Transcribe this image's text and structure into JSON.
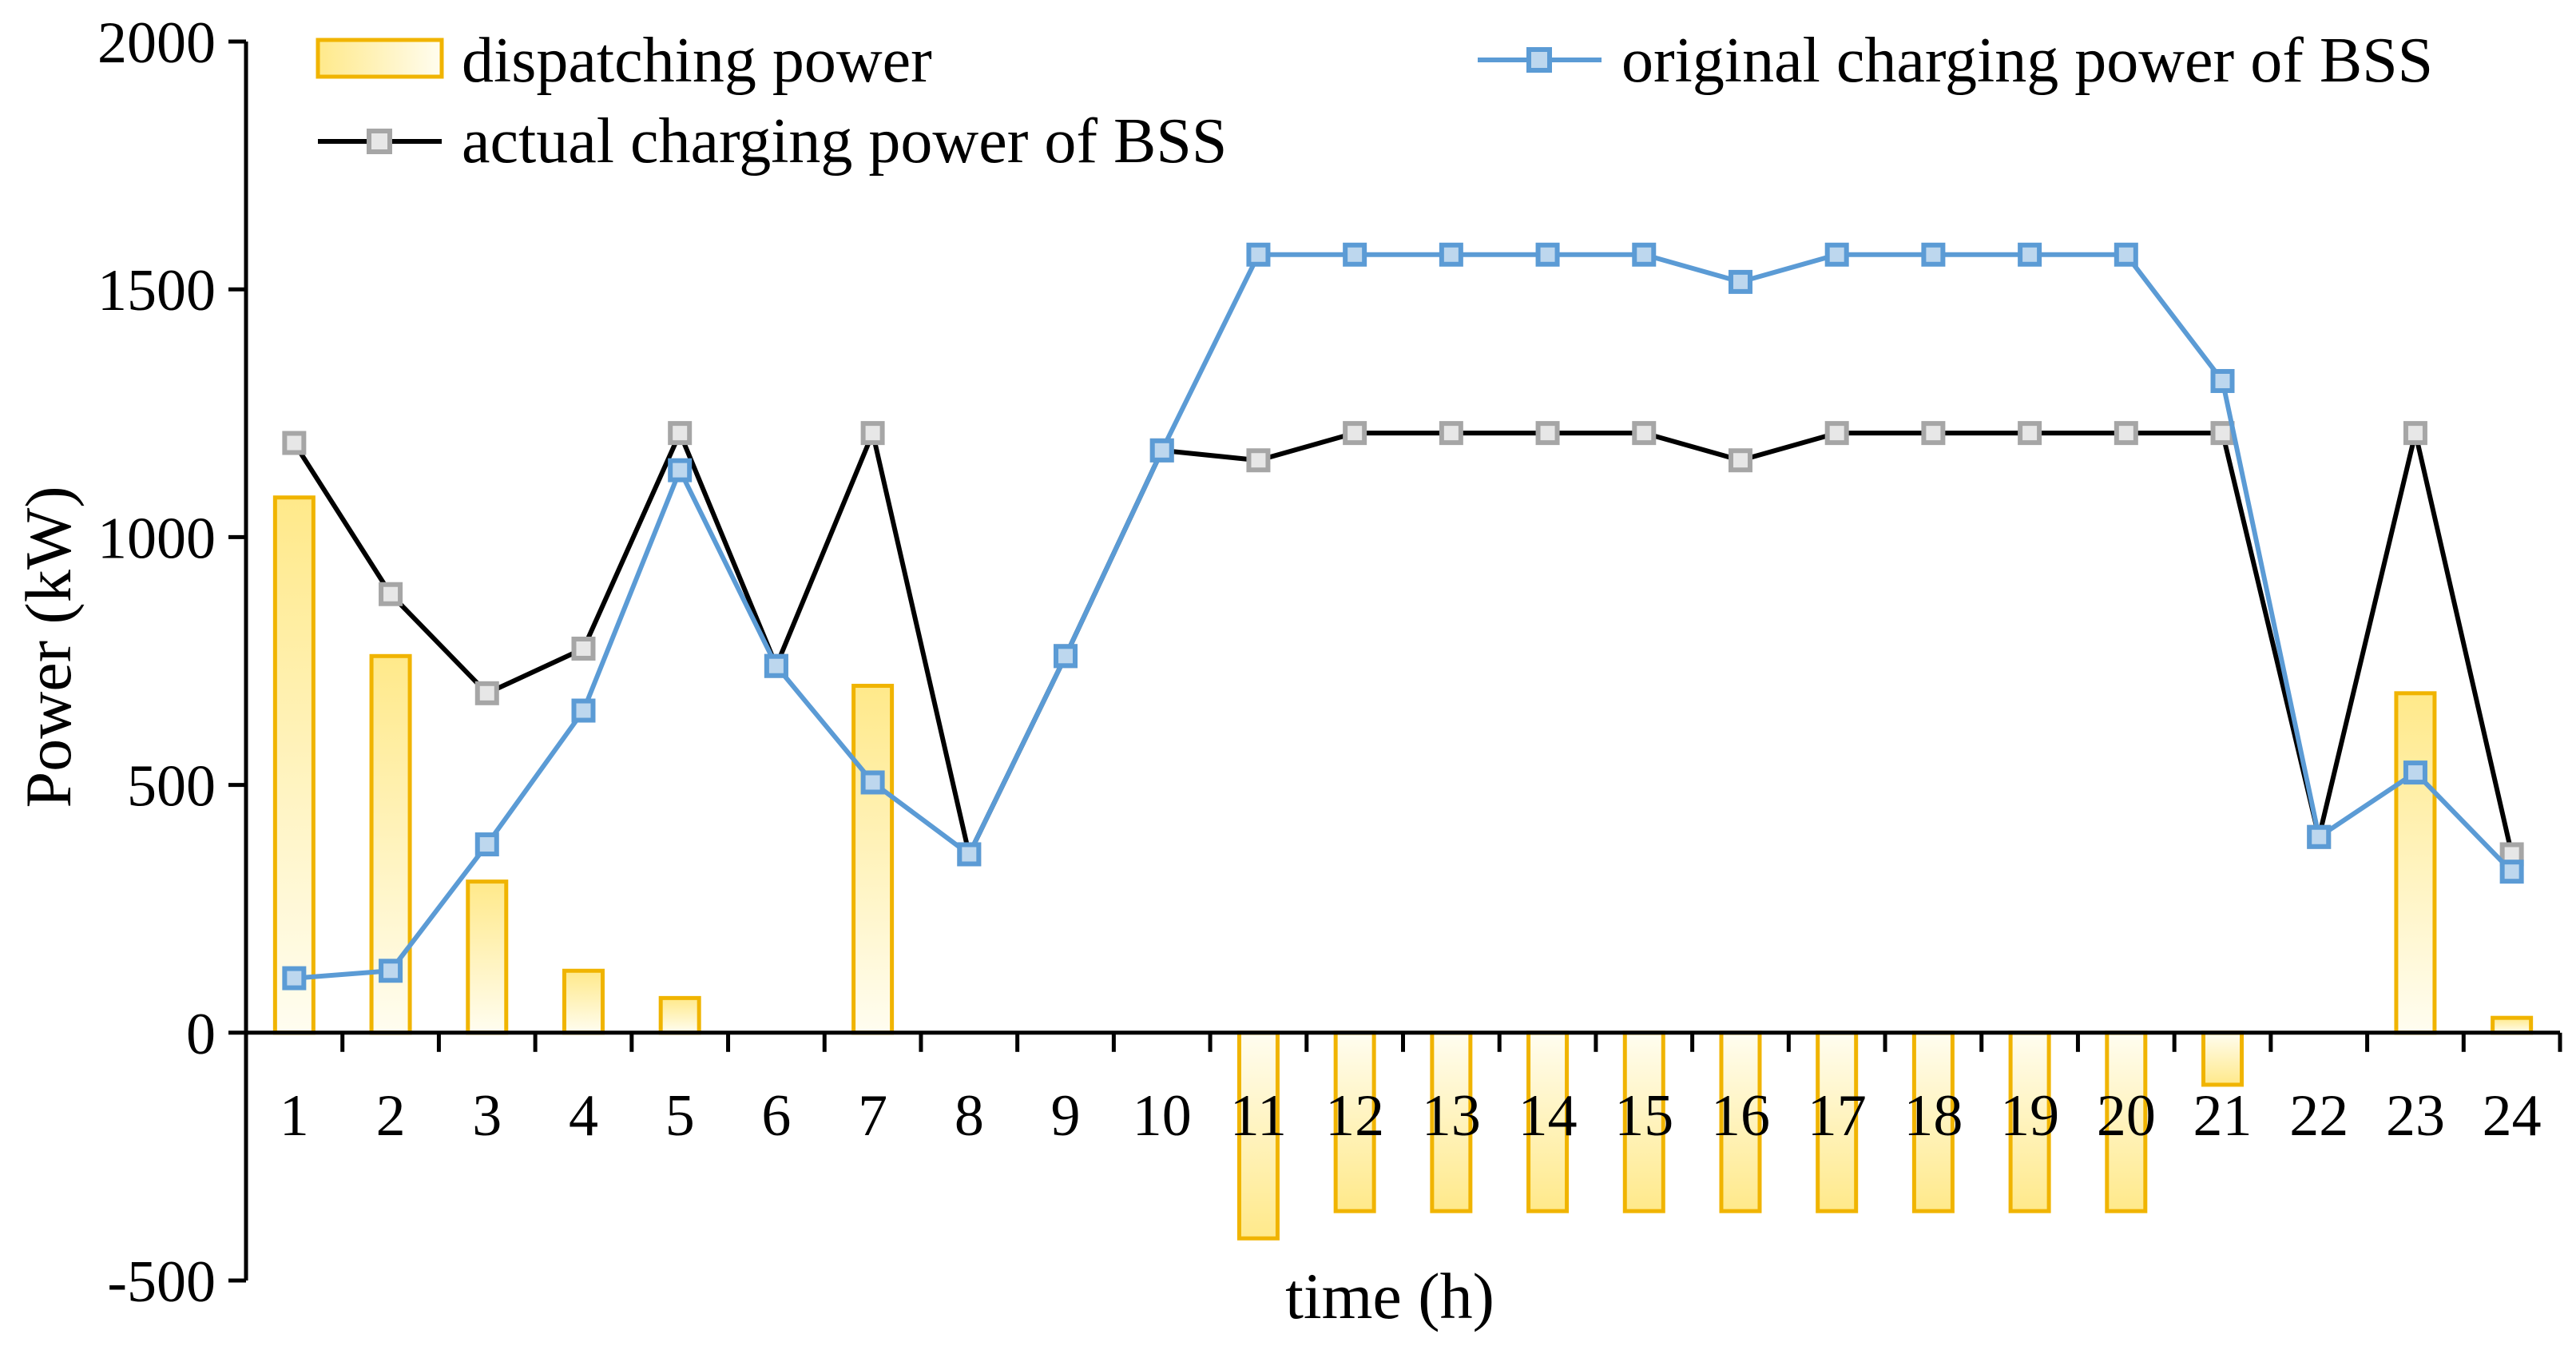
{
  "chart_data": {
    "type": "bar+line",
    "xlabel": "time (h)",
    "ylabel": "Power (kW)",
    "ylim": [
      -500,
      2000
    ],
    "yticks": [
      "2000",
      "1500",
      "1000",
      "500",
      "0",
      "-500"
    ],
    "ytick_values": [
      2000,
      1500,
      1000,
      500,
      0,
      -500
    ],
    "categories": [
      "1",
      "2",
      "3",
      "4",
      "5",
      "6",
      "7",
      "8",
      "9",
      "10",
      "11",
      "12",
      "13",
      "14",
      "15",
      "16",
      "17",
      "18",
      "19",
      "20",
      "21",
      "22",
      "23",
      "24"
    ],
    "grid": false,
    "legend_position": "top",
    "series": [
      {
        "name": "dispatching power",
        "kind": "bar",
        "color": "#F0B400",
        "fill_light": "#FFFDF0",
        "fill_dark": "#FFE98A",
        "values": [
          1080,
          760,
          305,
          125,
          70,
          0,
          700,
          0,
          0,
          0,
          -415,
          -360,
          -360,
          -360,
          -360,
          -360,
          -360,
          -360,
          -360,
          -360,
          -105,
          0,
          685,
          30
        ]
      },
      {
        "name": "original charging power of BSS",
        "kind": "line",
        "color": "#5B9BD5",
        "marker_fill": "#BDD7EE",
        "values": [
          110,
          125,
          380,
          650,
          1135,
          740,
          505,
          360,
          760,
          1175,
          1570,
          1570,
          1570,
          1570,
          1570,
          1515,
          1570,
          1570,
          1570,
          1570,
          1315,
          395,
          525,
          325
        ]
      },
      {
        "name": "actual charging power of BSS",
        "kind": "line",
        "color": "#000000",
        "marker_stroke": "#A6A6A6",
        "marker_fill": "#E7E7E7",
        "values": [
          1190,
          885,
          685,
          775,
          1210,
          740,
          1210,
          360,
          760,
          1175,
          1155,
          1210,
          1210,
          1210,
          1210,
          1155,
          1210,
          1210,
          1210,
          1210,
          1210,
          395,
          1210,
          360
        ]
      }
    ]
  }
}
